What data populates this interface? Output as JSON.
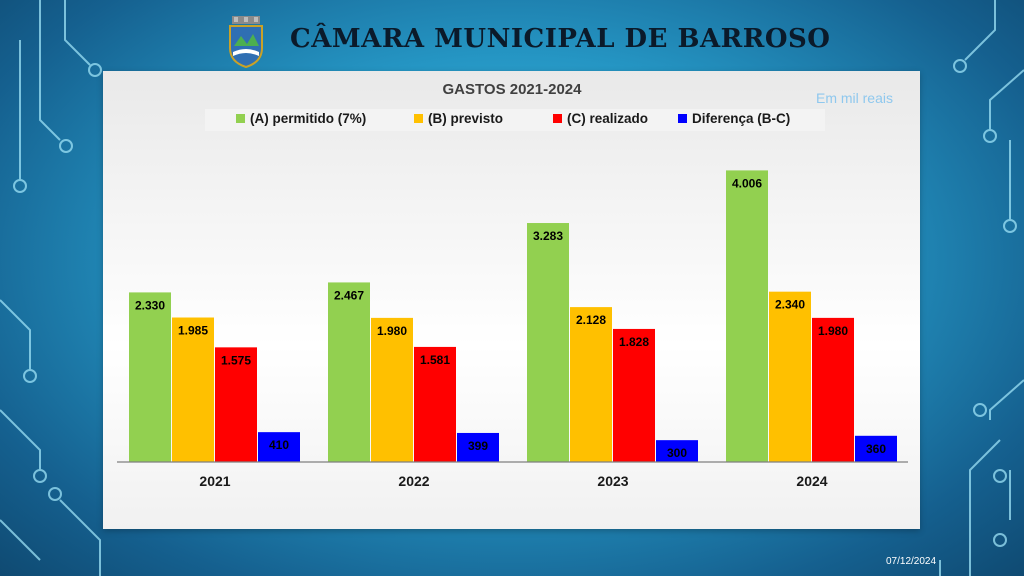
{
  "header": {
    "title": "CÂMARA MUNICIPAL DE BARROSO"
  },
  "footer": {
    "date": "07/12/2024"
  },
  "colors": {
    "permitido": "#92d050",
    "previsto": "#ffc000",
    "realizado": "#ff0000",
    "diferenca": "#0000ff",
    "unit_note": "#8fc8ee"
  },
  "chart_data": {
    "type": "bar",
    "title": "GASTOS 2021-2024",
    "unit_note": "Em mil reais",
    "categories": [
      "2021",
      "2022",
      "2023",
      "2024"
    ],
    "series": [
      {
        "name": "(A) permitido (7%)",
        "values": [
          2330,
          2467,
          3283,
          4006
        ],
        "labels": [
          "2.330",
          "2.467",
          "3.283",
          "4.006"
        ]
      },
      {
        "name": "(B) previsto",
        "values": [
          1985,
          1980,
          2128,
          2340
        ],
        "labels": [
          "1.985",
          "1.980",
          "2.128",
          "2.340"
        ]
      },
      {
        "name": "(C) realizado",
        "values": [
          1575,
          1581,
          1828,
          1980
        ],
        "labels": [
          "1.575",
          "1.581",
          "1.828",
          "1.980"
        ]
      },
      {
        "name": "Diferença (B-C)",
        "values": [
          410,
          399,
          300,
          360
        ],
        "labels": [
          "410",
          "399",
          "300",
          "360"
        ]
      }
    ],
    "ylim": [
      0,
      4300
    ],
    "legend_position": "top",
    "grid": false
  }
}
